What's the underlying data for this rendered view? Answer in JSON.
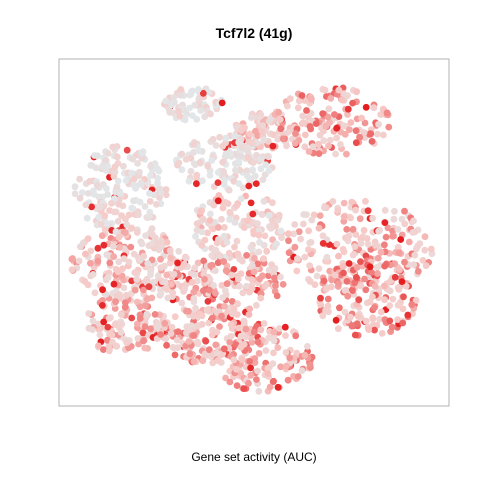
{
  "chart_data": {
    "type": "scatter",
    "title": "Tcf7l2 (41g)",
    "xlabel": "Gene set activity (AUC)",
    "ylabel": "",
    "xticks": [],
    "yticks": [],
    "grid": false,
    "legend": "none",
    "color_scale": {
      "low": "#e2e6e8",
      "mid": "#f7c9c6",
      "high": "#e41a1c"
    },
    "value_range": [
      0,
      1
    ],
    "clusters": [
      {
        "x": [
          45,
          62
        ],
        "y": [
          15,
          26
        ],
        "count": 90,
        "activity": 0.38
      },
      {
        "x": [
          27,
          42
        ],
        "y": [
          8,
          18
        ],
        "count": 70,
        "activity": 0.15
      },
      {
        "x": [
          55,
          85
        ],
        "y": [
          8,
          28
        ],
        "count": 150,
        "activity": 0.55
      },
      {
        "x": [
          4,
          28
        ],
        "y": [
          25,
          50
        ],
        "count": 180,
        "activity": 0.18
      },
      {
        "x": [
          30,
          55
        ],
        "y": [
          22,
          38
        ],
        "count": 140,
        "activity": 0.12
      },
      {
        "x": [
          34,
          58
        ],
        "y": [
          38,
          58
        ],
        "count": 130,
        "activity": 0.3
      },
      {
        "x": [
          3,
          33
        ],
        "y": [
          48,
          70
        ],
        "count": 200,
        "activity": 0.42
      },
      {
        "x": [
          26,
          58
        ],
        "y": [
          55,
          75
        ],
        "count": 200,
        "activity": 0.48
      },
      {
        "x": [
          58,
          96
        ],
        "y": [
          40,
          68
        ],
        "count": 220,
        "activity": 0.46
      },
      {
        "x": [
          66,
          92
        ],
        "y": [
          58,
          80
        ],
        "count": 150,
        "activity": 0.58
      },
      {
        "x": [
          6,
          28
        ],
        "y": [
          68,
          85
        ],
        "count": 130,
        "activity": 0.45
      },
      {
        "x": [
          25,
          50
        ],
        "y": [
          72,
          88
        ],
        "count": 140,
        "activity": 0.52
      },
      {
        "x": [
          40,
          65
        ],
        "y": [
          76,
          96
        ],
        "count": 140,
        "activity": 0.5
      }
    ]
  }
}
